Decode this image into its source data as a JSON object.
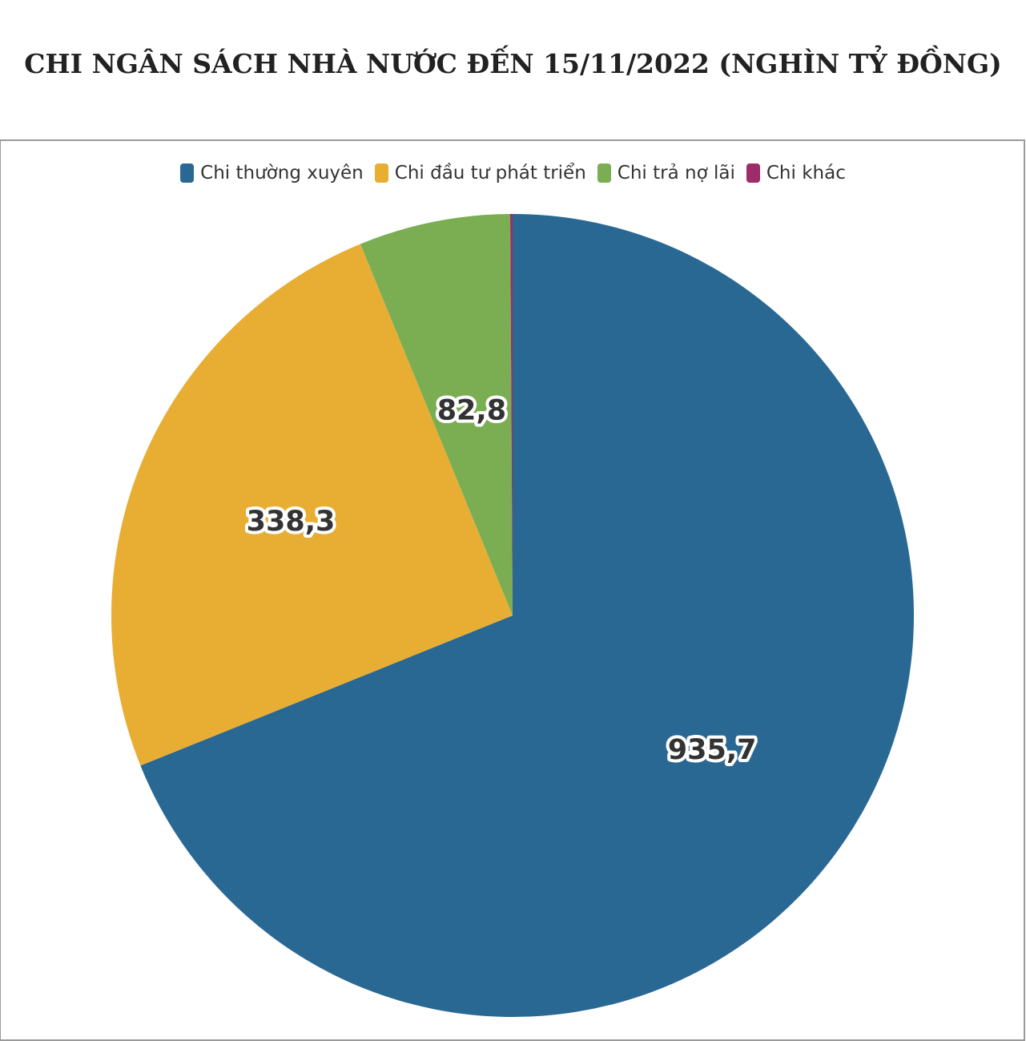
{
  "chart_data": {
    "type": "pie",
    "title": "CHI NGÂN SÁCH NHÀ NƯỚC ĐẾN 15/11/2022 (NGHÌN TỶ ĐỒNG)",
    "legend_position": "top",
    "slices": [
      {
        "label": "Chi thường xuyên",
        "value": 935.7,
        "value_label": "935,7",
        "color": "#2a6894"
      },
      {
        "label": "Chi đầu tư phát triển",
        "value": 338.3,
        "value_label": "338,3",
        "color": "#e8ae34"
      },
      {
        "label": "Chi trả nợ lãi",
        "value": 82.8,
        "value_label": "82,8",
        "color": "#7bae53"
      },
      {
        "label": "Chi khác",
        "value": 1.3,
        "value_label": "",
        "color": "#9c2d69"
      }
    ]
  }
}
